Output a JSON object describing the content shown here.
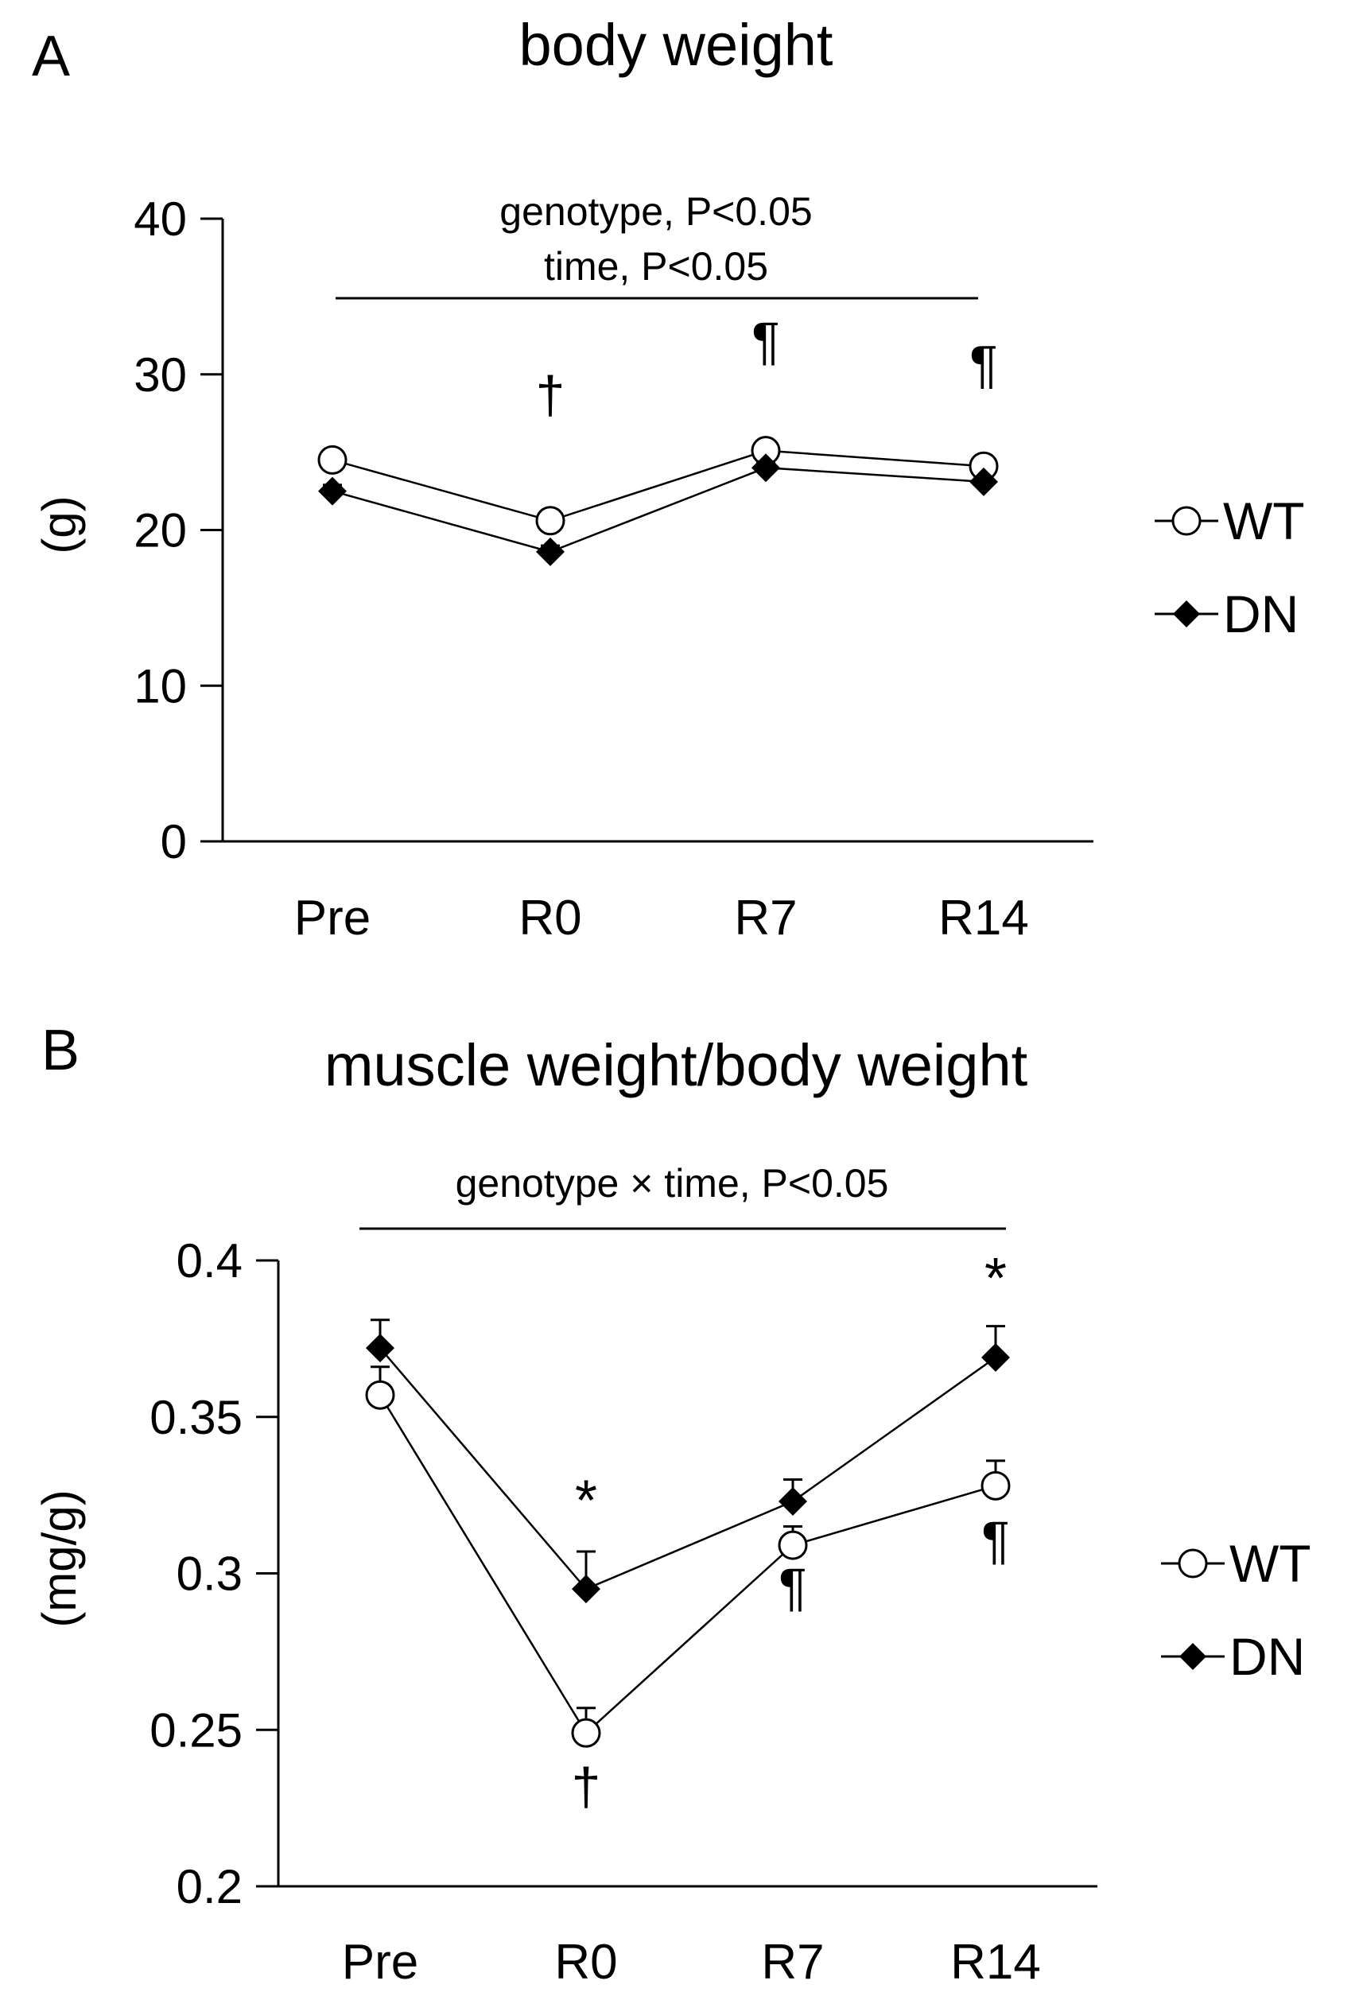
{
  "chart_data": [
    {
      "panel": "A",
      "type": "line",
      "title": "body weight",
      "xlabel": "",
      "ylabel": "(g)",
      "categories": [
        "Pre",
        "R0",
        "R7",
        "R14"
      ],
      "ylim": [
        0,
        40
      ],
      "yticks": [
        "0",
        "10",
        "20",
        "30",
        "40"
      ],
      "series": [
        {
          "name": "WT",
          "marker": "open-circle",
          "values": [
            24.5,
            20.6,
            25.1,
            24.1
          ],
          "errors": [
            0.3,
            0.4,
            0.3,
            0.3
          ]
        },
        {
          "name": "DN",
          "marker": "filled-diamond",
          "values": [
            22.5,
            18.6,
            24.0,
            23.1
          ],
          "errors": [
            0.4,
            0.4,
            0.3,
            0.6
          ]
        }
      ],
      "stats": [
        "genotype, P<0.05",
        "time, P<0.05"
      ],
      "annotations": [
        {
          "category": "R0",
          "text": "†",
          "value": 27.5
        },
        {
          "category": "R7",
          "text": "¶",
          "value": 31
        },
        {
          "category": "R14",
          "text": "¶",
          "value": 29.5
        }
      ],
      "legend": [
        "WT",
        "DN"
      ]
    },
    {
      "panel": "B",
      "type": "line",
      "title": "muscle weight/body weight",
      "xlabel": "",
      "ylabel": "(mg/g)",
      "categories": [
        "Pre",
        "R0",
        "R7",
        "R14"
      ],
      "ylim": [
        0.2,
        0.4
      ],
      "yticks": [
        "0.2",
        "0.25",
        "0.3",
        "0.35",
        "0.4"
      ],
      "series": [
        {
          "name": "WT",
          "marker": "open-circle",
          "values": [
            0.357,
            0.249,
            0.309,
            0.328
          ],
          "errors": [
            0.009,
            0.008,
            0.006,
            0.008
          ]
        },
        {
          "name": "DN",
          "marker": "filled-diamond",
          "values": [
            0.372,
            0.295,
            0.323,
            0.369
          ],
          "errors": [
            0.009,
            0.012,
            0.007,
            0.01
          ]
        }
      ],
      "stats": [
        "genotype × time, P<0.05"
      ],
      "annotations": [
        {
          "category": "R0",
          "text": "*",
          "value": 0.317
        },
        {
          "category": "R0",
          "text": "†",
          "value": 0.226
        },
        {
          "category": "R7",
          "text": "¶",
          "value": 0.29
        },
        {
          "category": "R14",
          "text": "*",
          "value": 0.388
        },
        {
          "category": "R14",
          "text": "¶",
          "value": 0.305
        }
      ],
      "legend": [
        "WT",
        "DN"
      ]
    }
  ]
}
